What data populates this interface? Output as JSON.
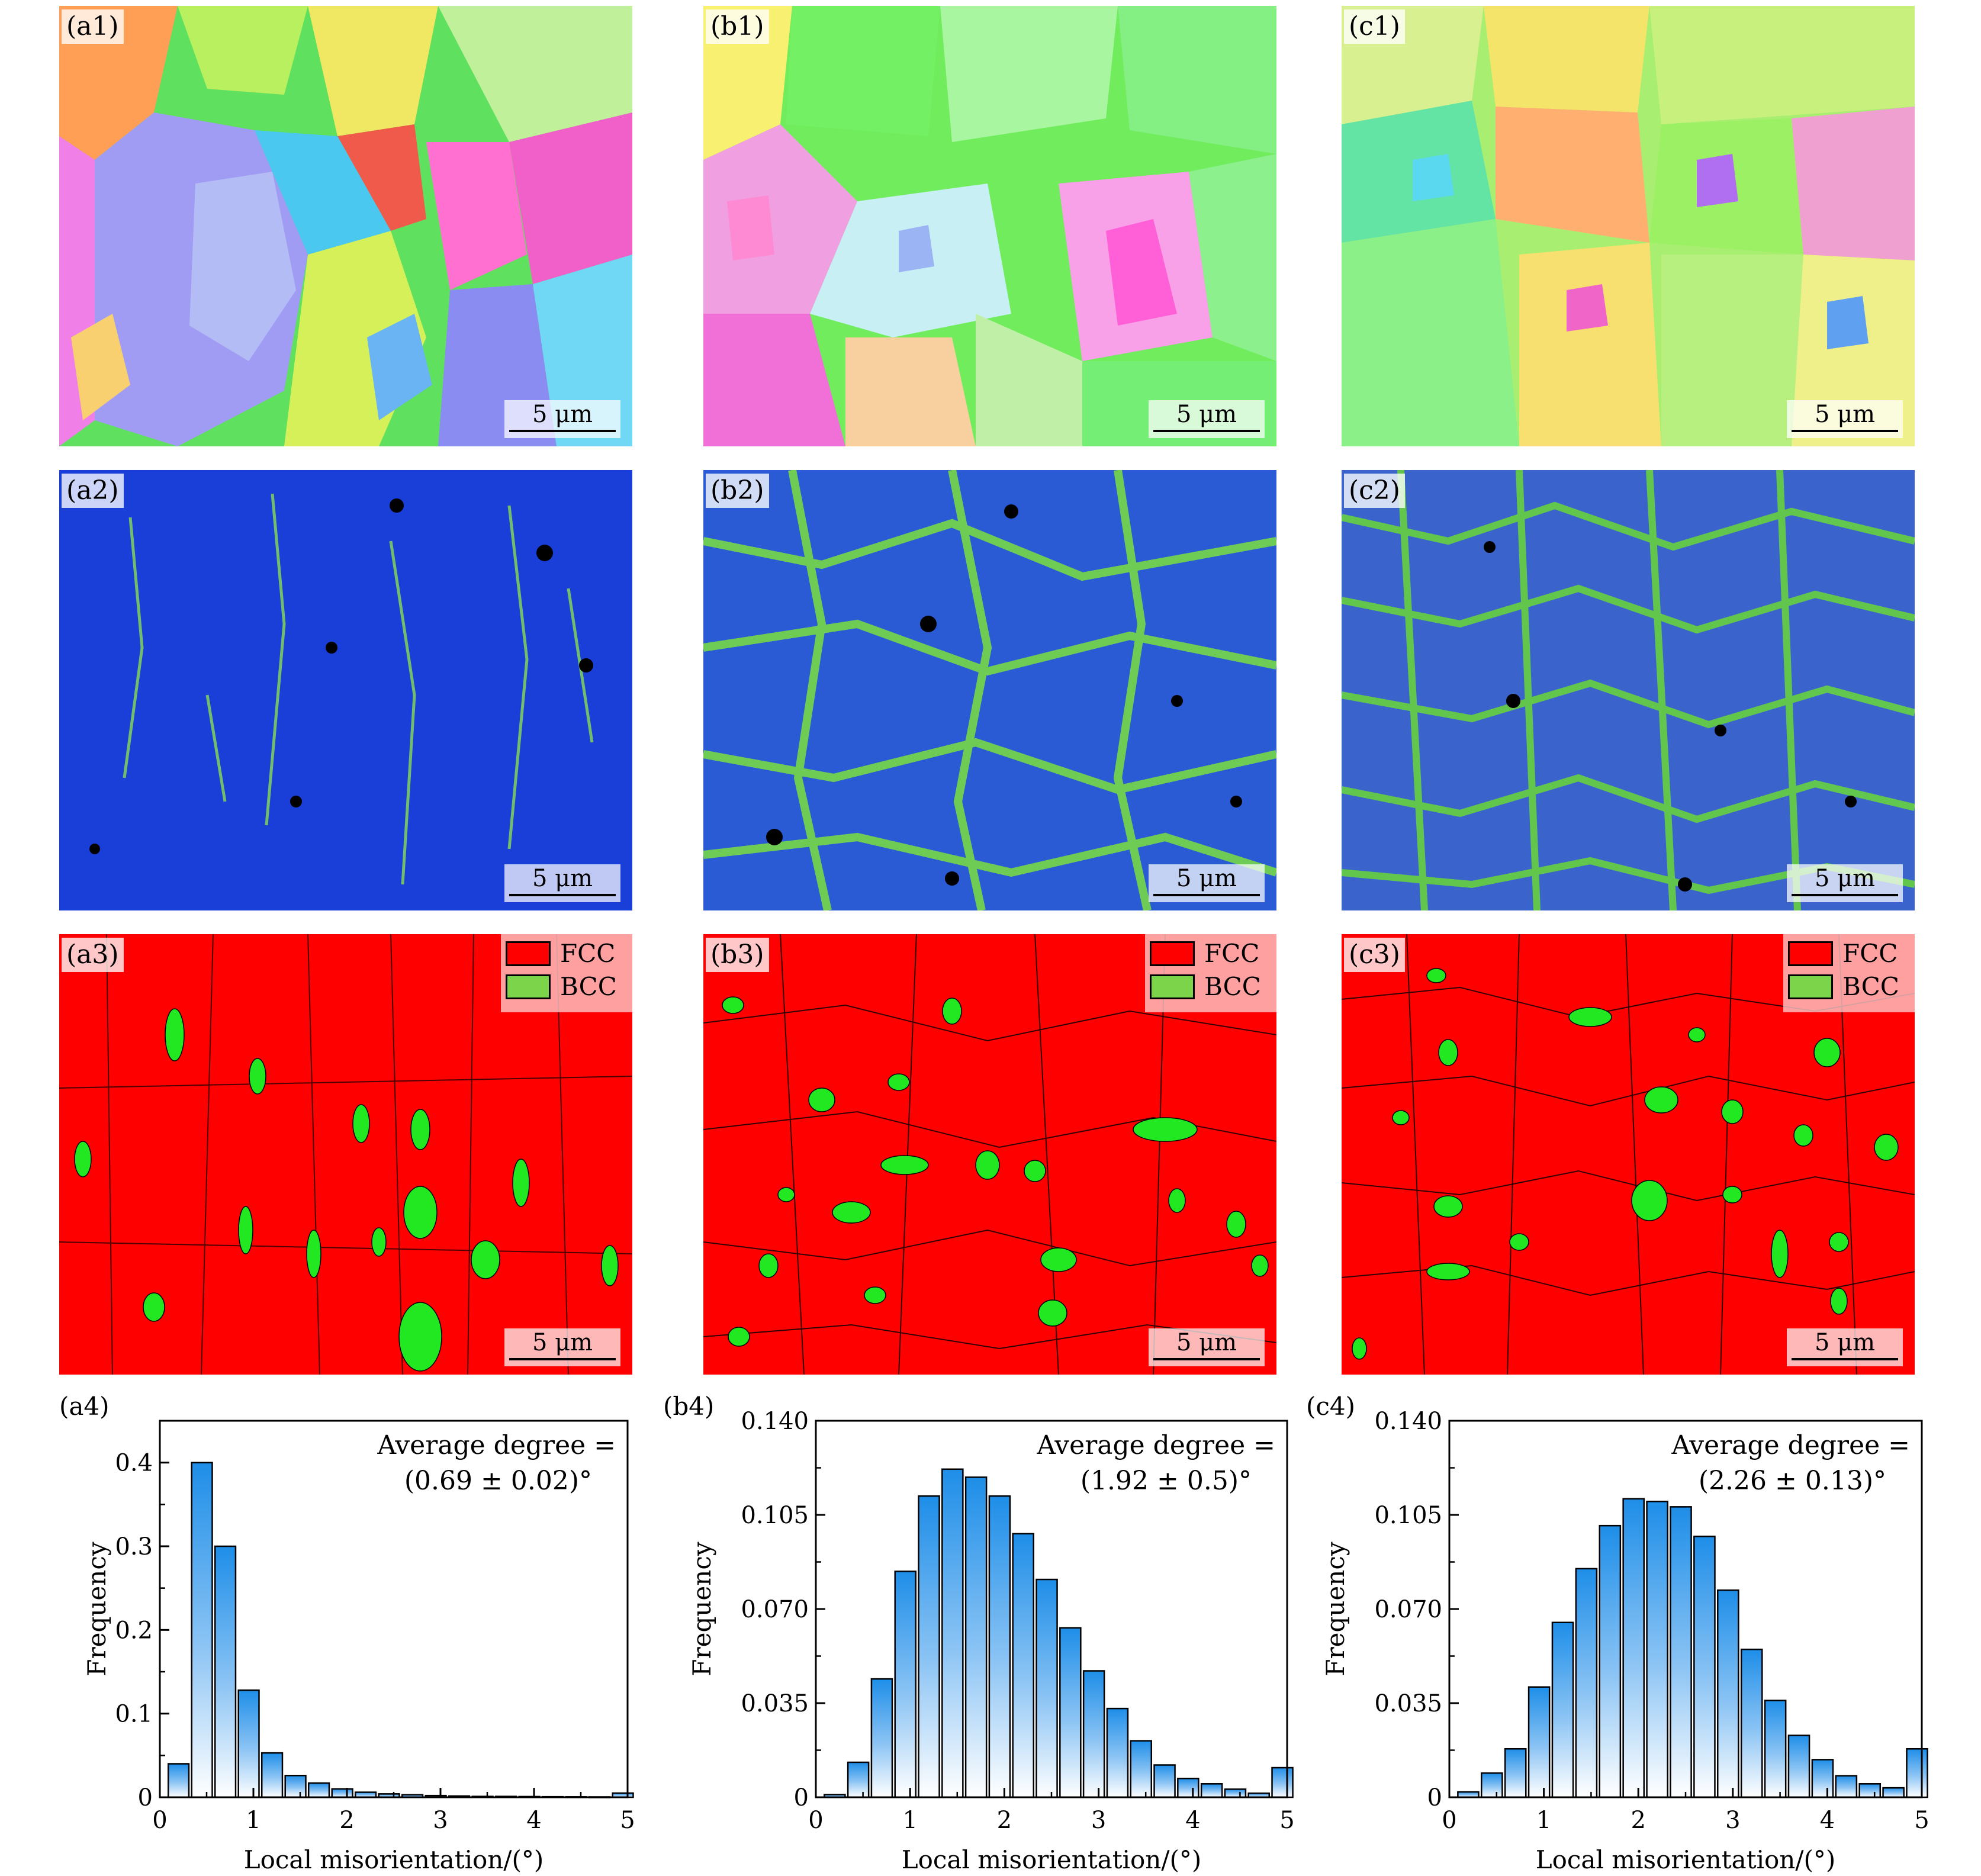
{
  "maps": {
    "a1": {
      "label": "(a1)",
      "scale": "5 μm"
    },
    "b1": {
      "label": "(b1)",
      "scale": "5 μm"
    },
    "c1": {
      "label": "(c1)",
      "scale": "5 μm"
    },
    "a2": {
      "label": "(a2)",
      "scale": "5 μm"
    },
    "b2": {
      "label": "(b2)",
      "scale": "5 μm"
    },
    "c2": {
      "label": "(c2)",
      "scale": "5 μm"
    },
    "a3": {
      "label": "(a3)",
      "scale": "5 μm"
    },
    "b3": {
      "label": "(b3)",
      "scale": "5 μm"
    },
    "c3": {
      "label": "(c3)",
      "scale": "5 μm"
    }
  },
  "phase_legend": {
    "fcc": "FCC",
    "bcc": "BCC",
    "fcc_color": "#ff0000",
    "bcc_color": "#7cd44a"
  },
  "chart_data": [
    {
      "type": "bar",
      "panel": "(a4)",
      "xlabel": "Local misorientation/(°)",
      "ylabel": "Frequency",
      "annotation": [
        "Average degree =",
        "(0.69 ± 0.02)°"
      ],
      "xlim": [
        0,
        5
      ],
      "ylim": [
        0,
        0.45
      ],
      "yticks": [
        0,
        0.1,
        0.2,
        0.3,
        0.4
      ],
      "ytick_labels": [
        "0",
        "0.1",
        "0.2",
        "0.3",
        "0.4"
      ],
      "xticks": [
        0,
        1,
        2,
        3,
        4,
        5
      ],
      "xtick_labels": [
        "0",
        "1",
        "2",
        "3",
        "4",
        "5"
      ],
      "bin_width": 0.25,
      "x": [
        0.2,
        0.45,
        0.7,
        0.95,
        1.2,
        1.45,
        1.7,
        1.95,
        2.2,
        2.45,
        2.7,
        2.95,
        3.2,
        3.45,
        3.7,
        3.95,
        4.2,
        4.45,
        4.7,
        4.95
      ],
      "values": [
        0.04,
        0.4,
        0.3,
        0.128,
        0.053,
        0.026,
        0.017,
        0.01,
        0.006,
        0.004,
        0.003,
        0.002,
        0.0015,
        0.001,
        0.001,
        0.0008,
        0.0006,
        0.0005,
        0.0004,
        0.005
      ]
    },
    {
      "type": "bar",
      "panel": "(b4)",
      "xlabel": "Local misorientation/(°)",
      "ylabel": "Frequency",
      "annotation": [
        "Average degree =",
        "(1.92 ± 0.5)°"
      ],
      "xlim": [
        0,
        5
      ],
      "ylim": [
        0,
        0.14
      ],
      "yticks": [
        0,
        0.035,
        0.07,
        0.105,
        0.14
      ],
      "ytick_labels": [
        "0",
        "0.035",
        "0.070",
        "0.105",
        "0.140"
      ],
      "xticks": [
        0,
        1,
        2,
        3,
        4,
        5
      ],
      "xtick_labels": [
        "0",
        "1",
        "2",
        "3",
        "4",
        "5"
      ],
      "bin_width": 0.25,
      "x": [
        0.2,
        0.45,
        0.7,
        0.95,
        1.2,
        1.45,
        1.7,
        1.95,
        2.2,
        2.45,
        2.7,
        2.95,
        3.2,
        3.45,
        3.7,
        3.95,
        4.2,
        4.45,
        4.7,
        4.95
      ],
      "values": [
        0.001,
        0.013,
        0.044,
        0.084,
        0.112,
        0.122,
        0.119,
        0.112,
        0.098,
        0.081,
        0.063,
        0.047,
        0.033,
        0.021,
        0.012,
        0.007,
        0.005,
        0.003,
        0.0015,
        0.011
      ]
    },
    {
      "type": "bar",
      "panel": "(c4)",
      "xlabel": "Local misorientation/(°)",
      "ylabel": "Frequency",
      "annotation": [
        "Average degree =",
        "(2.26 ± 0.13)°"
      ],
      "xlim": [
        0,
        5
      ],
      "ylim": [
        0,
        0.14
      ],
      "yticks": [
        0,
        0.035,
        0.07,
        0.105,
        0.14
      ],
      "ytick_labels": [
        "0",
        "0.035",
        "0.070",
        "0.105",
        "0.140"
      ],
      "xticks": [
        0,
        1,
        2,
        3,
        4,
        5
      ],
      "xtick_labels": [
        "0",
        "1",
        "2",
        "3",
        "4",
        "5"
      ],
      "bin_width": 0.25,
      "x": [
        0.2,
        0.45,
        0.7,
        0.95,
        1.2,
        1.45,
        1.7,
        1.95,
        2.2,
        2.45,
        2.7,
        2.95,
        3.2,
        3.45,
        3.7,
        3.95,
        4.2,
        4.45,
        4.7,
        4.95
      ],
      "values": [
        0.002,
        0.009,
        0.018,
        0.041,
        0.065,
        0.085,
        0.101,
        0.111,
        0.11,
        0.108,
        0.097,
        0.077,
        0.055,
        0.036,
        0.023,
        0.014,
        0.008,
        0.005,
        0.0035,
        0.018
      ]
    }
  ]
}
